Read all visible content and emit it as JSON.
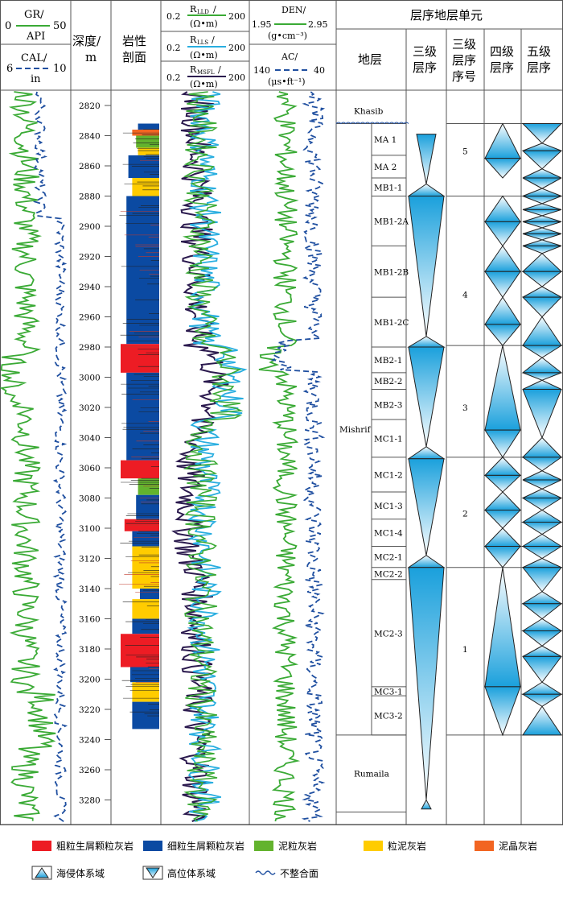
{
  "header": {
    "gr_label": "GR/",
    "gr_min": "0",
    "gr_max": "50",
    "gr_unit": "API",
    "cal_label": "CAL/",
    "cal_min": "6",
    "cal_max": "10",
    "cal_unit": "in",
    "depth_label": "深度/",
    "depth_unit": "m",
    "litho_label1": "岩性",
    "litho_label2": "剖面",
    "rlld_label": "R",
    "rlld_sub": "LLD",
    "rlls_sub": "LLS",
    "rmsfl_sub": "MSFL",
    "res_unit": "(Ω•m)",
    "res_min": "0.2",
    "res_max": "200",
    "den_label": "DEN/",
    "den_min": "1.95",
    "den_max": "2.95",
    "den_unit": "(g•cm⁻³)",
    "ac_label": "AC/",
    "ac_min": "140",
    "ac_max": "40",
    "ac_unit": "(μs•ft⁻¹)",
    "seq_title": "层序地层单元",
    "strata": "地层",
    "third_order": [
      "三级",
      "层序"
    ],
    "third_no": [
      "三级",
      "层序",
      "序号"
    ],
    "fourth_order": [
      "四级",
      "层序"
    ],
    "fifth_order": [
      "五级",
      "层序"
    ]
  },
  "depth_ticks": [
    2820,
    2840,
    2860,
    2880,
    2900,
    2920,
    2940,
    2960,
    2980,
    3000,
    3020,
    3040,
    3060,
    3080,
    3100,
    3120,
    3140,
    3160,
    3180,
    3200,
    3220,
    3240,
    3260,
    3280
  ],
  "formations": [
    {
      "name": "Khasib",
      "top": 2815,
      "base": 2832
    },
    {
      "name": "Mishrif",
      "top": 2832,
      "base": 3237
    },
    {
      "name": "Rumaila",
      "top": 3237,
      "base": 3288
    }
  ],
  "units": [
    {
      "name": "MA 1",
      "top": 2832,
      "base": 2853
    },
    {
      "name": "MA 2",
      "top": 2853,
      "base": 2868
    },
    {
      "name": "MB1-1",
      "top": 2868,
      "base": 2880
    },
    {
      "name": "MB1-2A",
      "top": 2880,
      "base": 2913
    },
    {
      "name": "MB1-2B",
      "top": 2913,
      "base": 2947
    },
    {
      "name": "MB1-2C",
      "top": 2947,
      "base": 2980
    },
    {
      "name": "MB2-1",
      "top": 2980,
      "base": 2997
    },
    {
      "name": "MB2-2",
      "top": 2997,
      "base": 3008
    },
    {
      "name": "MB2-3",
      "top": 3008,
      "base": 3028
    },
    {
      "name": "MC1-1",
      "top": 3028,
      "base": 3053
    },
    {
      "name": "MC1-2",
      "top": 3053,
      "base": 3076
    },
    {
      "name": "MC1-3",
      "top": 3076,
      "base": 3094
    },
    {
      "name": "MC1-4",
      "top": 3094,
      "base": 3112
    },
    {
      "name": "MC2-1",
      "top": 3112,
      "base": 3126
    },
    {
      "name": "MC2-2",
      "top": 3126,
      "base": 3134
    },
    {
      "name": "MC2-3",
      "top": 3134,
      "base": 3205
    },
    {
      "name": "MC3-1",
      "top": 3205,
      "base": 3211
    },
    {
      "name": "MC3-2",
      "top": 3211,
      "base": 3237
    }
  ],
  "third_order_seq": [
    {
      "no": "5",
      "top": 2832,
      "base": 2880,
      "tst_base": 2880,
      "hst_top": 2880
    },
    {
      "no": "4",
      "top": 2880,
      "base": 2979,
      "tst_base": 2979
    },
    {
      "no": "3",
      "top": 2979,
      "base": 3053
    },
    {
      "no": "2",
      "top": 3053,
      "base": 3126
    },
    {
      "no": "1",
      "top": 3126,
      "base": 3288
    }
  ],
  "legend": {
    "items": [
      {
        "label": "粗粒生屑颗粒灰岩",
        "color": "#ed1c24"
      },
      {
        "label": "细粒生屑颗粒灰岩",
        "color": "#0b4aa2"
      },
      {
        "label": "泥粒灰岩",
        "color": "#63b32e"
      },
      {
        "label": "粒泥灰岩",
        "color": "#ffcc00"
      },
      {
        "label": "泥晶灰岩",
        "color": "#f26522"
      }
    ],
    "symbols": [
      {
        "label": "海侵体系域",
        "icon": "triangle-up-icon"
      },
      {
        "label": "高位体系域",
        "icon": "triangle-down-icon"
      },
      {
        "label": "不整合面",
        "icon": "wavy-line-icon"
      }
    ]
  },
  "colors": {
    "gr": "#3aaa35",
    "cal": "#1f4fa0",
    "rlld": "#3aaa35",
    "rlls": "#29aee0",
    "rmsfl": "#2b1a4e",
    "den": "#3aaa35",
    "ac": "#1f4fa0"
  }
}
